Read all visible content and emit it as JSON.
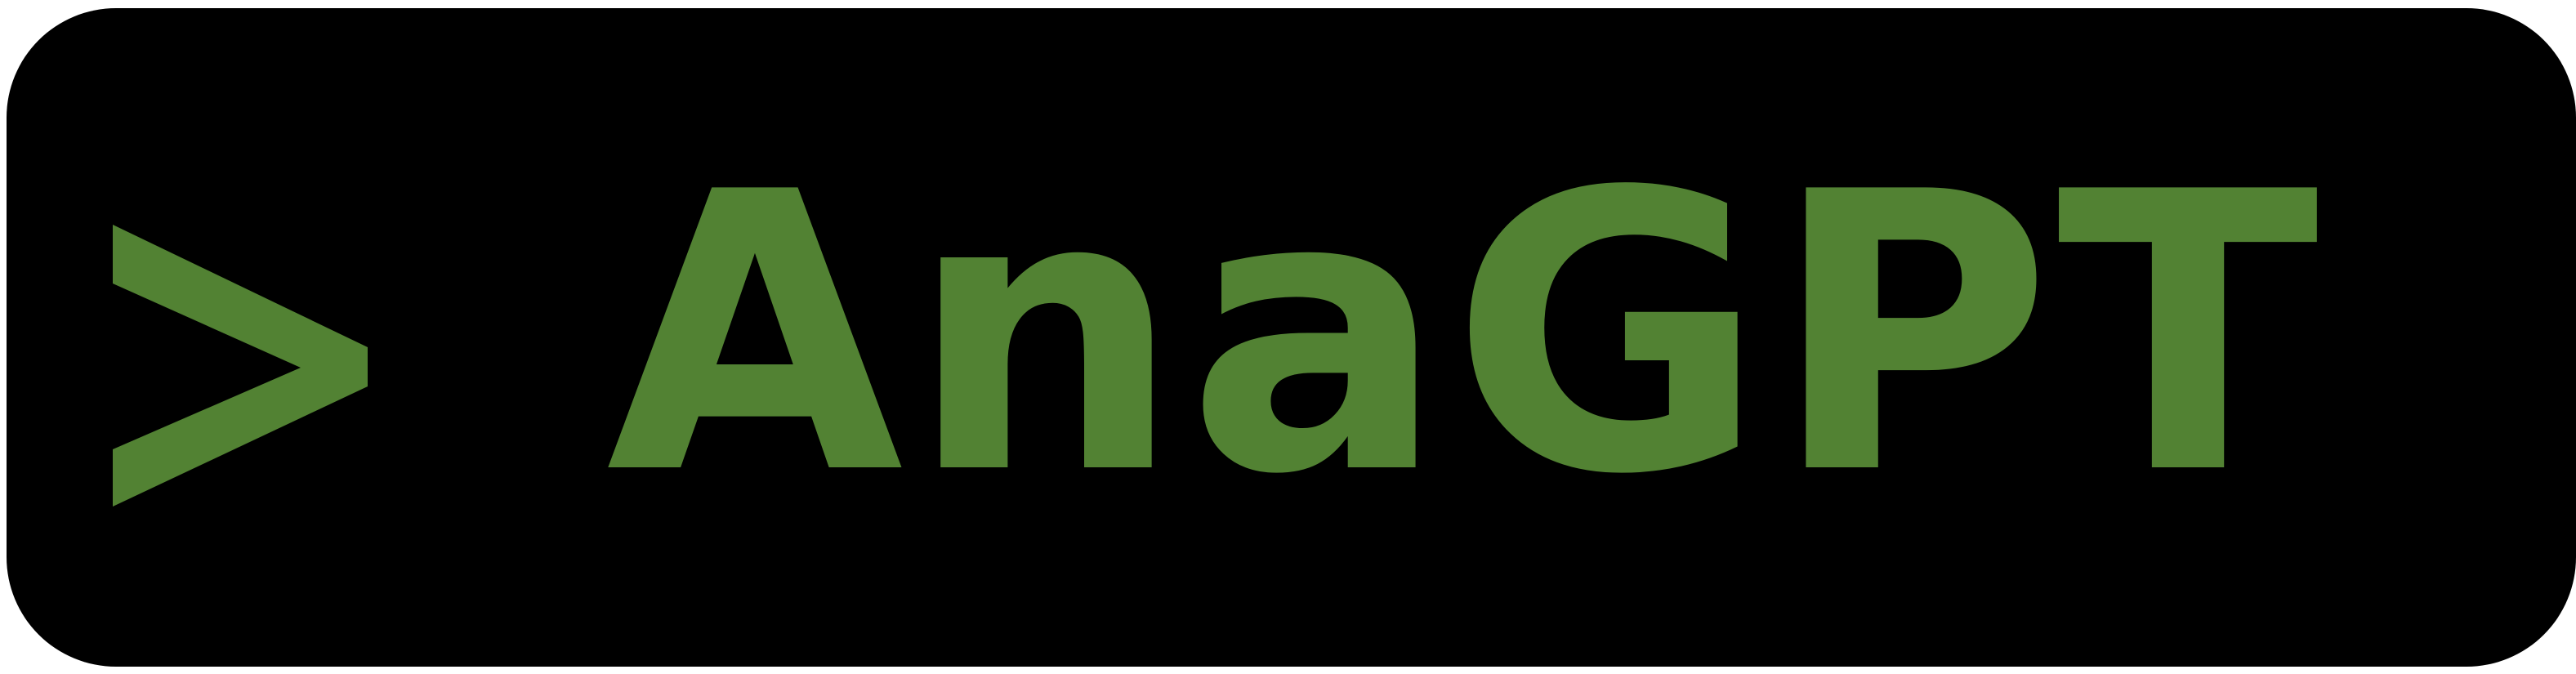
{
  "logo": {
    "icon": "chevron-right-icon",
    "title": "AnaGPT",
    "colors": {
      "background": "#000000",
      "accent": "#528233"
    }
  }
}
